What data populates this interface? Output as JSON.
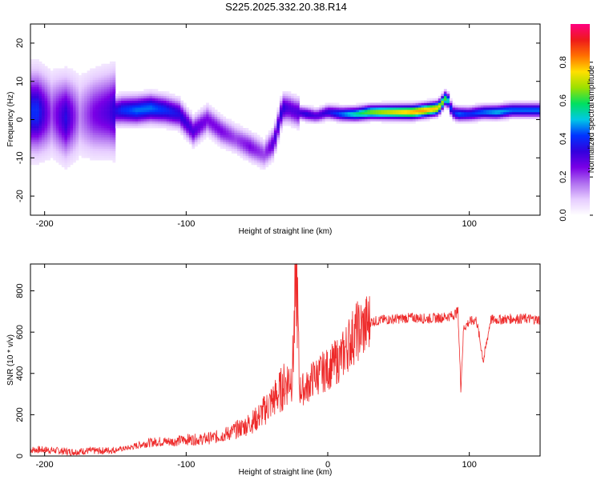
{
  "title": "S225.2025.332.20.38.R14",
  "colors": {
    "snr_line": "#ee2a2a",
    "colormap": [
      "#ffffff",
      "#e6ccff",
      "#b070f0",
      "#7a00e6",
      "#3300dd",
      "#0033ff",
      "#00c8e6",
      "#00e060",
      "#9be000",
      "#ffe000",
      "#ff7000",
      "#ee1a1a",
      "#ff0080"
    ]
  },
  "chart_data": [
    {
      "type": "heatmap",
      "title": "S225.2025.332.20.38.R14",
      "xlabel": "Height of straight line (km)",
      "ylabel": "Frequency (Hz)",
      "xlim": [
        -210,
        150
      ],
      "ylim": [
        -25,
        25
      ],
      "x_ticks": [
        -200,
        -100,
        100
      ],
      "x_tick_labels": [
        "-200",
        "-100",
        "100"
      ],
      "y_ticks": [
        -20,
        -10,
        0,
        10,
        20
      ],
      "y_tick_labels": [
        "-20",
        "-10",
        "0",
        "10",
        "20"
      ],
      "colorbar": {
        "label": "Normalized spectral amplitude",
        "range": [
          0,
          1
        ],
        "ticks": [
          0.0,
          0.2,
          0.4,
          0.6,
          0.8
        ],
        "tick_labels": [
          "0.0",
          "0.2",
          "0.4",
          "0.6",
          "0.8"
        ]
      },
      "ridge": {
        "x": [
          -205,
          -195,
          -185,
          -175,
          -165,
          -155,
          -145,
          -135,
          -125,
          -115,
          -105,
          -95,
          -85,
          -75,
          -65,
          -55,
          -45,
          -38,
          -32,
          -28,
          -22,
          -15,
          -8,
          0,
          10,
          20,
          30,
          40,
          50,
          60,
          70,
          78,
          84,
          88,
          92,
          100,
          110,
          120,
          130,
          140,
          150
        ],
        "frequency": [
          2,
          1.5,
          0.5,
          1,
          1.5,
          2,
          2.5,
          2.5,
          3,
          2.5,
          1.5,
          -3,
          0,
          -3,
          -5,
          -7,
          -9,
          -6,
          3,
          3,
          2,
          1.5,
          1,
          2,
          1.5,
          1.5,
          2,
          2,
          2,
          2,
          2.5,
          3,
          6,
          2,
          1.5,
          1.5,
          2,
          2,
          2.5,
          2.5,
          2.5
        ],
        "amplitude": [
          0.4,
          0.2,
          0.35,
          0.15,
          0.25,
          0.3,
          0.4,
          0.45,
          0.45,
          0.4,
          0.35,
          0.3,
          0.25,
          0.25,
          0.2,
          0.25,
          0.2,
          0.3,
          0.35,
          0.3,
          0.3,
          0.35,
          0.3,
          0.35,
          0.45,
          0.55,
          0.65,
          0.7,
          0.75,
          0.8,
          0.8,
          0.75,
          0.6,
          0.35,
          0.45,
          0.4,
          0.45,
          0.5,
          0.45,
          0.45,
          0.45
        ]
      }
    },
    {
      "type": "line",
      "xlabel": "Height of straight line (km)",
      "ylabel": "SNR (10 * v/v)",
      "xlim": [
        -210,
        150
      ],
      "ylim": [
        0,
        930
      ],
      "x_ticks": [
        -200,
        -100,
        0,
        100
      ],
      "x_tick_labels": [
        "-200",
        "-100",
        "0",
        "100"
      ],
      "y_ticks": [
        0,
        200,
        400,
        600,
        800
      ],
      "y_tick_labels": [
        "0",
        "200",
        "400",
        "600",
        "800"
      ],
      "series": [
        {
          "x": [
            -210,
            -200,
            -190,
            -180,
            -170,
            -160,
            -150,
            -140,
            -130,
            -120,
            -110,
            -100,
            -90,
            -80,
            -70,
            -60,
            -50,
            -45,
            -40,
            -35,
            -30,
            -25,
            -22,
            -20,
            -15,
            -10,
            -5,
            0,
            5,
            10,
            15,
            20,
            25,
            30,
            40,
            50,
            60,
            70,
            80,
            88,
            92,
            94,
            96,
            100,
            105,
            110,
            115,
            120,
            130,
            140,
            150
          ],
          "y": [
            30,
            30,
            25,
            20,
            25,
            25,
            30,
            40,
            60,
            70,
            70,
            80,
            80,
            90,
            110,
            140,
            180,
            220,
            260,
            300,
            350,
            400,
            900,
            320,
            330,
            380,
            400,
            420,
            450,
            480,
            550,
            600,
            620,
            650,
            660,
            665,
            670,
            665,
            670,
            680,
            700,
            330,
            620,
            650,
            660,
            460,
            660,
            660,
            665,
            665,
            660
          ]
        }
      ]
    }
  ]
}
